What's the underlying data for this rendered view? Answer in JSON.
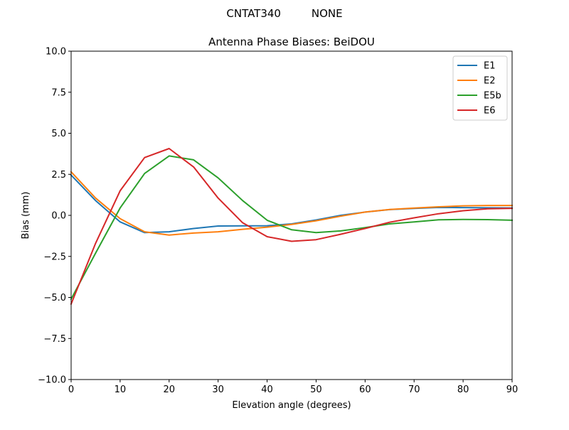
{
  "figure": {
    "suptitle": "CNTAT340         NONE"
  },
  "chart_data": {
    "type": "line",
    "title": "Antenna Phase Biases: BeiDOU",
    "xlabel": "Elevation angle (degrees)",
    "ylabel": "Bias (mm)",
    "xlim": [
      0,
      90
    ],
    "ylim": [
      -10,
      10
    ],
    "xticks": [
      0,
      10,
      20,
      30,
      40,
      50,
      60,
      70,
      80,
      90
    ],
    "yticks": [
      -10.0,
      -7.5,
      -5.0,
      -2.5,
      0.0,
      2.5,
      5.0,
      7.5,
      10.0
    ],
    "xtick_labels": [
      "0",
      "10",
      "20",
      "30",
      "40",
      "50",
      "60",
      "70",
      "80",
      "90"
    ],
    "ytick_labels": [
      "−10.0",
      "−7.5",
      "−5.0",
      "−2.5",
      "0.0",
      "2.5",
      "5.0",
      "7.5",
      "10.0"
    ],
    "grid": false,
    "legend_position": "top-right",
    "x": [
      0,
      5,
      10,
      15,
      20,
      25,
      30,
      35,
      40,
      45,
      50,
      55,
      60,
      65,
      70,
      75,
      80,
      85,
      90
    ],
    "series": [
      {
        "name": "E1",
        "color": "#1f77b4",
        "values": [
          2.45,
          0.9,
          -0.4,
          -1.05,
          -1.0,
          -0.8,
          -0.65,
          -0.64,
          -0.63,
          -0.52,
          -0.28,
          0.0,
          0.2,
          0.35,
          0.42,
          0.48,
          0.47,
          0.46,
          0.45
        ]
      },
      {
        "name": "E2",
        "color": "#ff7f0e",
        "values": [
          2.65,
          1.05,
          -0.2,
          -1.0,
          -1.2,
          -1.08,
          -1.0,
          -0.85,
          -0.72,
          -0.55,
          -0.33,
          -0.05,
          0.2,
          0.36,
          0.44,
          0.52,
          0.58,
          0.6,
          0.6
        ]
      },
      {
        "name": "E5b",
        "color": "#2ca02c",
        "values": [
          -5.1,
          -2.3,
          0.45,
          2.55,
          3.62,
          3.38,
          2.28,
          0.9,
          -0.3,
          -0.88,
          -1.05,
          -0.95,
          -0.75,
          -0.52,
          -0.4,
          -0.27,
          -0.25,
          -0.26,
          -0.3
        ]
      },
      {
        "name": "E6",
        "color": "#d62728",
        "values": [
          -5.4,
          -1.7,
          1.5,
          3.52,
          4.07,
          2.95,
          1.05,
          -0.45,
          -1.3,
          -1.58,
          -1.48,
          -1.15,
          -0.8,
          -0.42,
          -0.15,
          0.1,
          0.28,
          0.4,
          0.43
        ]
      }
    ]
  }
}
